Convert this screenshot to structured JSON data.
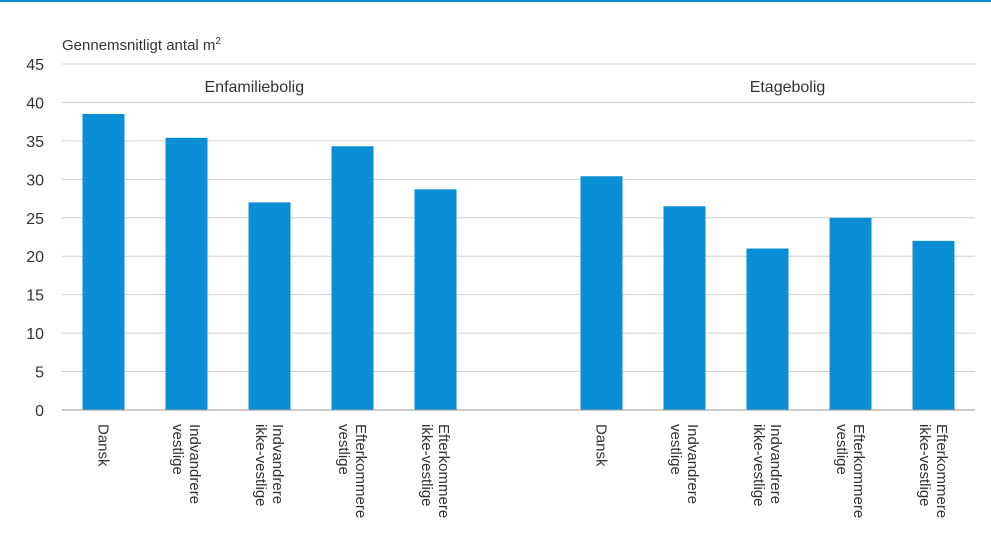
{
  "chart_data": {
    "type": "bar",
    "ylabel": "Gennemsnitligt antal m",
    "ylabel_superscript": "2",
    "ylim": [
      0,
      45
    ],
    "yticks": [
      0,
      5,
      10,
      15,
      20,
      25,
      30,
      35,
      40,
      45
    ],
    "grid": true,
    "colors": {
      "bar": "#0A8FD6",
      "top_line": "#0A8FD6",
      "grid": "#d0d0d0",
      "axis": "#999999"
    },
    "groups": [
      {
        "label": "Enfamiliebolig",
        "categories": [
          [
            "Dansk"
          ],
          [
            "Indvandrere",
            "vestlige"
          ],
          [
            "Indvandrere",
            "ikke-vestlige"
          ],
          [
            "Efterkommere",
            "vestlige"
          ],
          [
            "Efterkommere",
            "ikke-vestlige"
          ]
        ],
        "values": [
          38.5,
          35.4,
          27.0,
          34.3,
          28.7
        ]
      },
      {
        "label": "Etagebolig",
        "categories": [
          [
            "Dansk"
          ],
          [
            "Indvandrere",
            "vestlige"
          ],
          [
            "Indvandrere",
            "ikke-vestlige"
          ],
          [
            "Efterkommere",
            "vestlige"
          ],
          [
            "Efterkommere",
            "ikke-vestlige"
          ]
        ],
        "values": [
          30.4,
          26.5,
          21.0,
          25.0,
          22.0
        ]
      }
    ]
  }
}
